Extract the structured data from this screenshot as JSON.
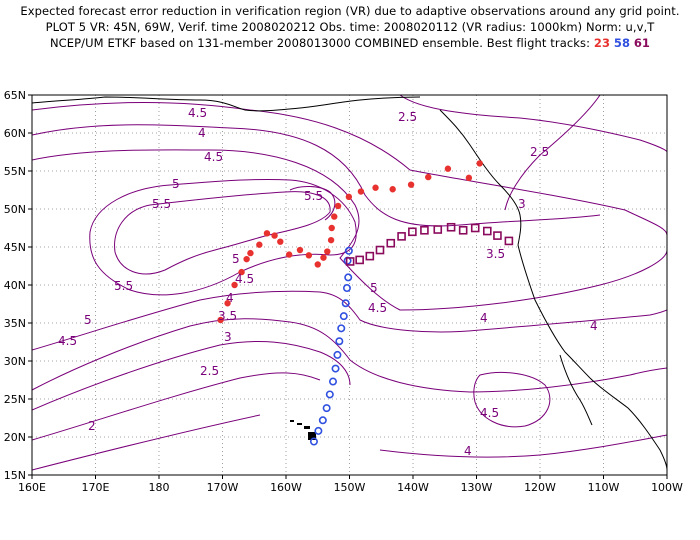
{
  "header": {
    "line1": "Expected forecast error reduction in verification region (VR) due to adaptive observations around any grid point.",
    "line2": "PLOT 5 VR: 45N, 69W, Verif. time 2008020212 Obs. time: 2008020112 (VR radius: 1000km) Norm: u,v,T",
    "line3_prefix": "NCEP/UM ETKF based on 131-member 2008013000 COMBINED ensemble.  Best flight tracks:",
    "track_ids": [
      "23",
      "58",
      "61"
    ]
  },
  "axes": {
    "x_ticks": [
      "160E",
      "170E",
      "180",
      "170W",
      "160W",
      "150W",
      "140W",
      "130W",
      "120W",
      "110W",
      "100W"
    ],
    "y_ticks": [
      "65N",
      "60N",
      "55N",
      "50N",
      "45N",
      "40N",
      "35N",
      "30N",
      "25N",
      "20N",
      "15N"
    ]
  },
  "contour_labels": [
    "2",
    "2.5",
    "3",
    "3.5",
    "4",
    "4.5",
    "5",
    "5.5"
  ],
  "colors": {
    "contour": "#7a007a",
    "track_23": "#e8322f",
    "track_58": "#3050e0",
    "track_61": "#8a0a5c",
    "coast": "#000000",
    "grid": "#888888"
  },
  "tracks": {
    "track_23": {
      "marker": "filled-dot",
      "points": [
        [
          -129.5,
          56.0
        ],
        [
          -131.2,
          54.1
        ],
        [
          -134.5,
          55.3
        ],
        [
          -137.6,
          54.2
        ],
        [
          -140.3,
          53.2
        ],
        [
          -143.2,
          52.6
        ],
        [
          -145.9,
          52.8
        ],
        [
          -148.2,
          52.3
        ],
        [
          -150.1,
          51.6
        ],
        [
          -151.8,
          50.4
        ],
        [
          -152.4,
          49.0
        ],
        [
          -152.8,
          47.5
        ],
        [
          -152.9,
          45.9
        ],
        [
          -153.5,
          44.4
        ],
        [
          -154.1,
          43.6
        ],
        [
          -155.0,
          42.7
        ],
        [
          -156.4,
          43.9
        ],
        [
          -157.8,
          44.6
        ],
        [
          -159.5,
          44.0
        ],
        [
          -160.9,
          45.7
        ],
        [
          -161.8,
          46.5
        ],
        [
          -163.0,
          46.8
        ],
        [
          -164.2,
          45.3
        ],
        [
          -165.6,
          44.2
        ],
        [
          -166.2,
          43.4
        ],
        [
          -167.0,
          41.7
        ],
        [
          -168.1,
          40.0
        ],
        [
          -169.2,
          37.6
        ],
        [
          -170.3,
          35.4
        ]
      ]
    },
    "track_58": {
      "marker": "open-circle",
      "points": [
        [
          -150.1,
          44.5
        ],
        [
          -150.3,
          43.2
        ],
        [
          -150.2,
          41.0
        ],
        [
          -150.4,
          39.6
        ],
        [
          -150.6,
          37.6
        ],
        [
          -150.9,
          35.9
        ],
        [
          -151.3,
          34.3
        ],
        [
          -151.6,
          32.6
        ],
        [
          -151.9,
          30.8
        ],
        [
          -152.2,
          29.0
        ],
        [
          -152.6,
          27.3
        ],
        [
          -153.1,
          25.6
        ],
        [
          -153.6,
          23.8
        ],
        [
          -154.2,
          22.2
        ],
        [
          -154.9,
          20.8
        ],
        [
          -155.6,
          19.4
        ]
      ]
    },
    "track_61": {
      "marker": "open-square",
      "points": [
        [
          -124.9,
          45.8
        ],
        [
          -126.7,
          46.5
        ],
        [
          -128.3,
          47.1
        ],
        [
          -130.2,
          47.5
        ],
        [
          -132.1,
          47.2
        ],
        [
          -134.0,
          47.6
        ],
        [
          -136.1,
          47.3
        ],
        [
          -138.2,
          47.2
        ],
        [
          -140.1,
          47.0
        ],
        [
          -141.8,
          46.4
        ],
        [
          -143.5,
          45.5
        ],
        [
          -145.2,
          44.6
        ],
        [
          -146.8,
          43.8
        ],
        [
          -148.4,
          43.3
        ],
        [
          -149.9,
          43.1
        ]
      ]
    }
  }
}
